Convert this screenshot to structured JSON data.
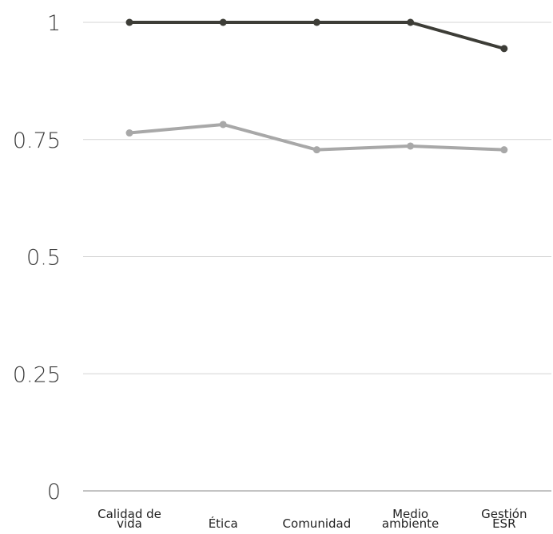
{
  "chart_data": {
    "type": "line",
    "title": "",
    "xlabel": "",
    "ylabel": "",
    "categories": [
      [
        "Calidad de",
        "vida"
      ],
      [
        "Ética"
      ],
      [
        "Comunidad"
      ],
      [
        "Medio",
        "ambiente"
      ],
      [
        "Gestión",
        "ESR"
      ]
    ],
    "y_ticks": [
      "0",
      "0.25",
      "0.5",
      "0.75",
      "1"
    ],
    "ylim": [
      0,
      1
    ],
    "grid": true,
    "legend": "none",
    "series": [
      {
        "color": "#3d3d37",
        "values": [
          1.0,
          1.0,
          1.0,
          1.0,
          0.944
        ]
      },
      {
        "color": "#a8a8a8",
        "values": [
          0.764,
          0.782,
          0.728,
          0.736,
          0.728
        ]
      }
    ]
  }
}
